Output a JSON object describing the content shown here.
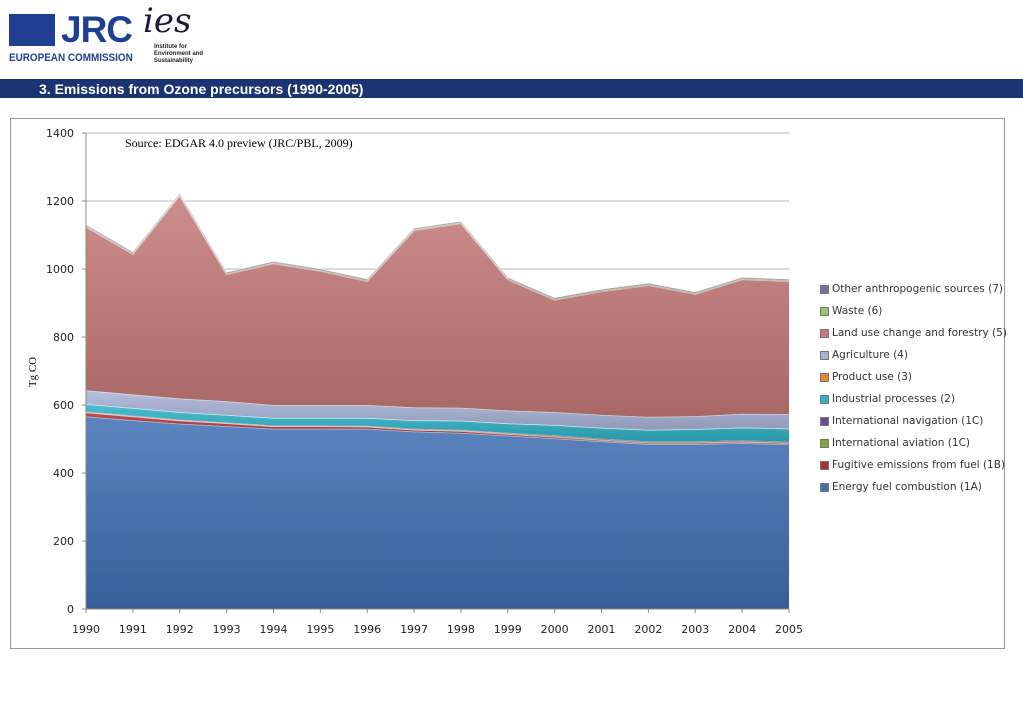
{
  "header": {
    "org": "EUROPEAN COMMISSION",
    "jrc": "JRC",
    "ies": "ies",
    "ies_sub": "Institute for Environment and Sustainability",
    "title": "3. Emissions from Ozone precursors (1990-2005)"
  },
  "chart_data": {
    "type": "area",
    "stacked": true,
    "annotation": "Source: EDGAR 4.0 preview  (JRC/PBL, 2009)",
    "ylabel": "Tg CO",
    "xlabel": "",
    "ylim": [
      0,
      1400
    ],
    "yticks": [
      "0",
      "200",
      "400",
      "600",
      "800",
      "1000",
      "1200",
      "1400"
    ],
    "grid": true,
    "legend_position": "right",
    "categories": [
      "1990",
      "1991",
      "1992",
      "1993",
      "1994",
      "1995",
      "1996",
      "1997",
      "1998",
      "1999",
      "2000",
      "2001",
      "2002",
      "2003",
      "2004",
      "2005"
    ],
    "series": [
      {
        "name": "Energy fuel combustion (1A)",
        "color": "#3f6fb5",
        "values": [
          566,
          555,
          545,
          538,
          530,
          530,
          530,
          522,
          518,
          510,
          502,
          493,
          485,
          485,
          488,
          484
        ]
      },
      {
        "name": "Fugitive emissions from fuel (1B)",
        "color": "#b03030",
        "values": [
          12,
          11,
          9,
          8,
          7,
          7,
          6,
          5,
          5,
          4,
          4,
          3,
          3,
          3,
          3,
          3
        ]
      },
      {
        "name": "International aviation (1C)",
        "color": "#7ea83a",
        "values": [
          1,
          1,
          1,
          1,
          1,
          1,
          1,
          1,
          2,
          2,
          2,
          2,
          2,
          2,
          2,
          2
        ]
      },
      {
        "name": "International navigation (1C)",
        "color": "#6a4a94",
        "values": [
          2,
          2,
          2,
          2,
          2,
          2,
          2,
          2,
          2,
          2,
          3,
          3,
          3,
          3,
          3,
          3
        ]
      },
      {
        "name": "Industrial processes (2)",
        "color": "#2fb3c7",
        "values": [
          22,
          22,
          22,
          22,
          22,
          22,
          23,
          25,
          27,
          28,
          30,
          32,
          34,
          36,
          38,
          39
        ]
      },
      {
        "name": "Product use (3)",
        "color": "#e8862a",
        "values": [
          0,
          0,
          0,
          0,
          0,
          0,
          0,
          0,
          0,
          0,
          0,
          0,
          0,
          0,
          0,
          0
        ]
      },
      {
        "name": "Agriculture (4)",
        "color": "#a9b4d9",
        "values": [
          40,
          40,
          40,
          40,
          38,
          38,
          38,
          38,
          38,
          38,
          38,
          38,
          38,
          38,
          40,
          42
        ]
      },
      {
        "name": "Land use change and forestry (5)",
        "color": "#c47a78",
        "values": [
          481,
          413,
          597,
          373,
          416,
          394,
          364,
          521,
          542,
          385,
          330,
          363,
          387,
          359,
          395,
          391
        ]
      },
      {
        "name": "Waste (6)",
        "color": "#a3c26a",
        "values": [
          3,
          3,
          3,
          3,
          3,
          3,
          3,
          3,
          3,
          3,
          3,
          3,
          3,
          3,
          3,
          3
        ]
      },
      {
        "name": "Other anthropogenic sources (7)",
        "color": "#7a6ea8",
        "values": [
          3,
          3,
          3,
          3,
          3,
          3,
          3,
          3,
          3,
          3,
          3,
          3,
          3,
          3,
          3,
          3
        ]
      }
    ]
  }
}
